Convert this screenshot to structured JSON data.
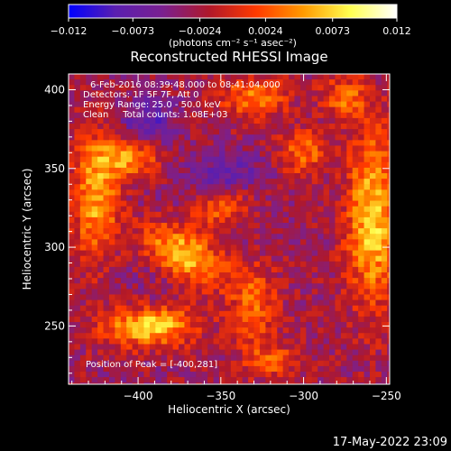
{
  "chart_data": {
    "type": "heatmap",
    "title": "Reconstructed RHESSI Image",
    "xlabel": "Heliocentric X (arcsec)",
    "ylabel": "Heliocentric Y (arcsec)",
    "xlim": [
      -442,
      -248
    ],
    "ylim": [
      213,
      410
    ],
    "x_ticks": [
      -400,
      -350,
      -300,
      -250
    ],
    "y_ticks": [
      250,
      300,
      350,
      400
    ],
    "colorbar": {
      "min": -0.012,
      "max": 0.012,
      "tick_values": [
        -0.012,
        -0.0073,
        -0.0024,
        0.0024,
        0.0073,
        0.012
      ],
      "tick_labels": [
        "-0.012",
        "-0.0073",
        "-0.0024",
        "0.0024",
        "0.0073",
        "0.012"
      ],
      "units_label": "(photons cm⁻² s⁻¹ asec⁻²)"
    },
    "annotations": [
      "6-Feb-2016 08:39:48.000 to 08:41:04.000",
      "Detectors: 1F 5F 7F, Att 0",
      "Energy Range: 25.0 - 50.0 keV",
      "Clean     Total counts: 1.08E+03"
    ],
    "peak_label": "Position of Peak = [-400,281]",
    "grid": false,
    "colormap": [
      "#0000ff",
      "#5a1fb0",
      "#7a2090",
      "#b0182a",
      "#ff3a00",
      "#ff9a00",
      "#ffff50",
      "#ffffff"
    ],
    "blobs": [
      {
        "x": -372,
        "y": 295,
        "amp": 0.0115,
        "sx": 20,
        "sy": 11,
        "rot": -0.55
      },
      {
        "x": -392,
        "y": 250,
        "amp": 0.0105,
        "sx": 20,
        "sy": 9,
        "rot": 0.05
      },
      {
        "x": -258,
        "y": 318,
        "amp": 0.01,
        "sx": 11,
        "sy": 38,
        "rot": 0.0
      },
      {
        "x": -425,
        "y": 330,
        "amp": 0.0085,
        "sx": 10,
        "sy": 28,
        "rot": 0.0
      },
      {
        "x": -405,
        "y": 358,
        "amp": 0.0085,
        "sx": 13,
        "sy": 9,
        "rot": 0.0
      },
      {
        "x": -330,
        "y": 265,
        "amp": 0.006,
        "sx": 10,
        "sy": 18,
        "rot": 0.0
      },
      {
        "x": -300,
        "y": 360,
        "amp": 0.006,
        "sx": 10,
        "sy": 10,
        "rot": 0.0
      },
      {
        "x": -330,
        "y": 395,
        "amp": 0.0065,
        "sx": 14,
        "sy": 9,
        "rot": 0.0
      },
      {
        "x": -350,
        "y": 325,
        "amp": 0.0065,
        "sx": 14,
        "sy": 9,
        "rot": 0.4
      },
      {
        "x": -275,
        "y": 395,
        "amp": 0.006,
        "sx": 10,
        "sy": 9,
        "rot": 0.0
      },
      {
        "x": -320,
        "y": 228,
        "amp": 0.005,
        "sx": 12,
        "sy": 8,
        "rot": 0.0
      },
      {
        "x": -395,
        "y": 378,
        "amp": -0.0055,
        "sx": 12,
        "sy": 12,
        "rot": 0.0
      },
      {
        "x": -345,
        "y": 345,
        "amp": -0.005,
        "sx": 15,
        "sy": 10,
        "rot": 0.0
      },
      {
        "x": -375,
        "y": 295,
        "amp": -0.002,
        "sx": 30,
        "sy": 30,
        "rot": 0.0
      }
    ]
  },
  "footer": {
    "timestamp": "17-May-2022 23:09"
  }
}
